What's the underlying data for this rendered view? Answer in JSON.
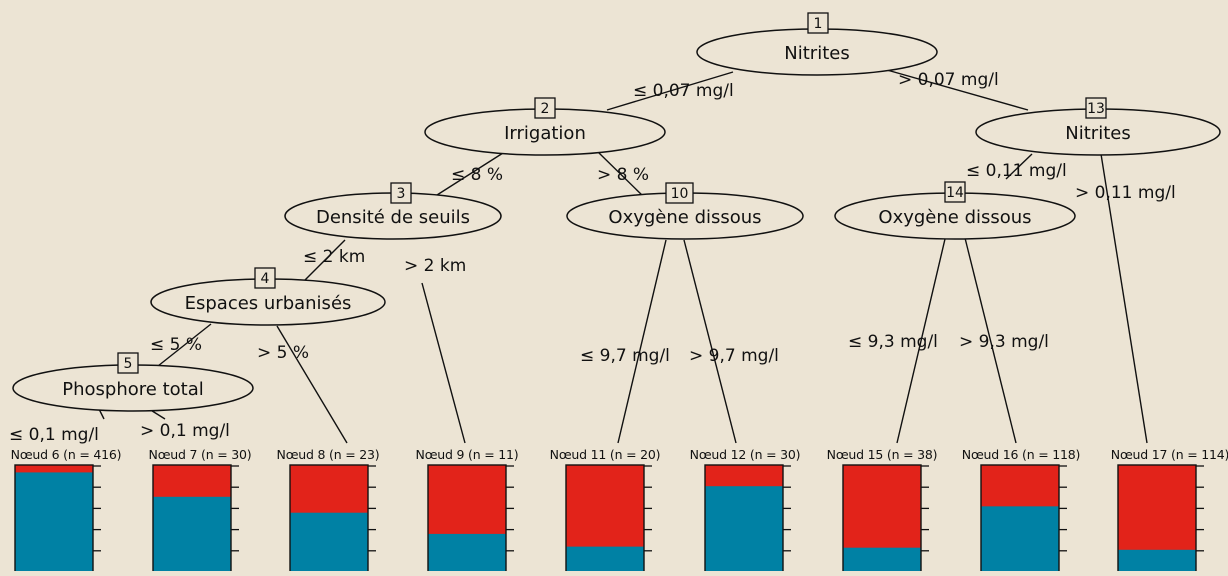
{
  "colors": {
    "background": "#ece4d4",
    "share_top": "#e2231a",
    "share_bottom": "#0081a4",
    "line": "#111111"
  },
  "tree": {
    "nodes": [
      {
        "id": "1",
        "label": "Nitrites"
      },
      {
        "id": "2",
        "label": "Irrigation"
      },
      {
        "id": "3",
        "label": "Densité de seuils"
      },
      {
        "id": "4",
        "label": "Espaces urbanisés"
      },
      {
        "id": "5",
        "label": "Phosphore total"
      },
      {
        "id": "10",
        "label": "Oxygène dissous"
      },
      {
        "id": "13",
        "label": "Nitrites"
      },
      {
        "id": "14",
        "label": "Oxygène dissous"
      }
    ],
    "edges": [
      {
        "label": "≤ 0,07 mg/l"
      },
      {
        "label": "> 0,07 mg/l"
      },
      {
        "label": "≤ 8 %"
      },
      {
        "label": "> 8 %"
      },
      {
        "label": "≤ 2 km"
      },
      {
        "label": "> 2 km"
      },
      {
        "label": "≤ 5 %"
      },
      {
        "label": "> 5 %"
      },
      {
        "label": "≤ 0,1 mg/l"
      },
      {
        "label": "> 0,1 mg/l"
      },
      {
        "label": "≤ 9,7 mg/l"
      },
      {
        "label": "> 9,7 mg/l"
      },
      {
        "label": "≤ 0,11 mg/l"
      },
      {
        "label": "> 0,11 mg/l"
      },
      {
        "label": "≤ 9,3 mg/l"
      },
      {
        "label": "> 9,3 mg/l"
      }
    ],
    "leaves": [
      {
        "title": "Nœud 6 (n = 416)",
        "red_share": 0.07
      },
      {
        "title": "Nœud 7 (n = 30)",
        "red_share": 0.3
      },
      {
        "title": "Nœud 8 (n = 23)",
        "red_share": 0.45
      },
      {
        "title": "Nœud 9 (n = 11)",
        "red_share": 0.65
      },
      {
        "title": "Nœud 11 (n = 20)",
        "red_share": 0.77
      },
      {
        "title": "Nœud 12 (n = 30)",
        "red_share": 0.2
      },
      {
        "title": "Nœud 15 (n = 38)",
        "red_share": 0.78
      },
      {
        "title": "Nœud 16 (n = 118)",
        "red_share": 0.39
      },
      {
        "title": "Nœud 17 (n = 114)",
        "red_share": 0.8
      }
    ]
  }
}
